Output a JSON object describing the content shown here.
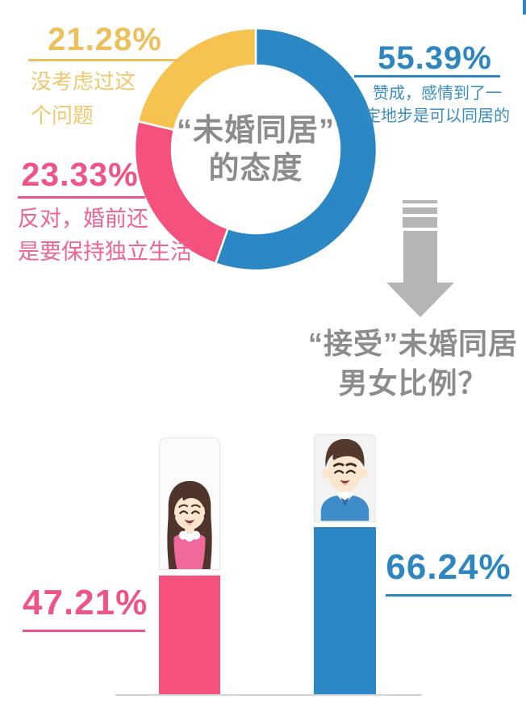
{
  "colors": {
    "approve_blue": "#2c87c5",
    "oppose_pink": "#f4527c",
    "neutral_yellow": "#f6c350",
    "heading_gray": "#8c8c8c",
    "arrow_gray": "#b5b5b5",
    "baseline_gray": "#d2d2d2"
  },
  "chart_data": [
    {
      "type": "pie",
      "donut": true,
      "title": "“未婚同居”的态度",
      "center_line1": "“未婚同居”",
      "center_line2": "的态度",
      "start_angle_deg": 0,
      "direction": "clockwise",
      "slices": [
        {
          "name": "approve",
          "value": 55.39,
          "pct_label": "55.39%",
          "color": "#2c87c5",
          "caption_line1": "赞成，感情到了一",
          "caption_line2": "定地步是可以同居的",
          "label": "赞成，感情到了一定地步是可以同居的"
        },
        {
          "name": "oppose",
          "value": 23.33,
          "pct_label": "23.33%",
          "color": "#f4527c",
          "caption_line1": "反对，婚前还",
          "caption_line2": "是要保持独立生活",
          "label": "反对，婚前还是要保持独立生活"
        },
        {
          "name": "not-considered",
          "value": 21.28,
          "pct_label": "21.28%",
          "color": "#f6c350",
          "caption_line1": "没考虑过这",
          "caption_line2": "个问题",
          "label": "没考虑过这个问题"
        }
      ]
    },
    {
      "type": "bar",
      "title": "“接受”未婚同居男女比例？",
      "title_line1": "“接受”未婚同居",
      "title_line2": "男女比例？",
      "categories": [
        "女",
        "男"
      ],
      "values": [
        47.21,
        66.24
      ],
      "value_labels": [
        "47.21%",
        "66.24%"
      ],
      "colors": [
        "#f4527c",
        "#2c87c5"
      ],
      "ylim": [
        0,
        100
      ]
    }
  ]
}
